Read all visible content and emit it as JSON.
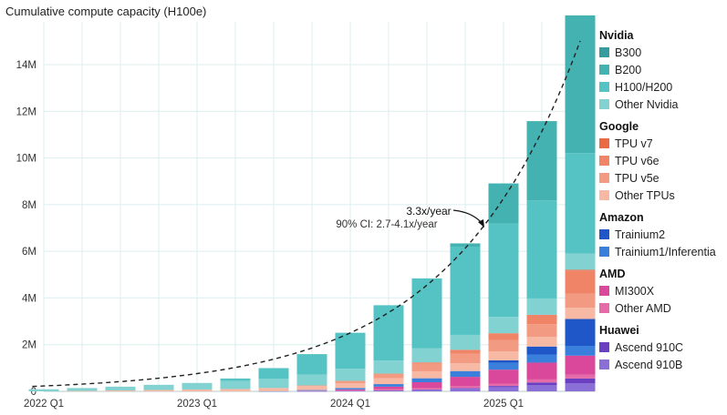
{
  "chart_data": {
    "type": "bar",
    "stacked": true,
    "title": "Cumulative compute capacity (H100e)",
    "xlabel": "",
    "ylabel": "",
    "ylim": [
      0,
      15600000
    ],
    "yticks": [
      0,
      2000000,
      4000000,
      6000000,
      8000000,
      10000000,
      12000000,
      14000000
    ],
    "ytick_labels": [
      "0",
      "2M",
      "4M",
      "6M",
      "8M",
      "10M",
      "12M",
      "14M"
    ],
    "categories": [
      "2022 Q1",
      "2022 Q2",
      "2022 Q3",
      "2022 Q4",
      "2023 Q1",
      "2023 Q2",
      "2023 Q3",
      "2023 Q4",
      "2024 Q1",
      "2024 Q2",
      "2024 Q3",
      "2024 Q4",
      "2025 Q1",
      "2025 Q2",
      "2025 Q3"
    ],
    "xtick_labels": [
      {
        "category": "2022 Q1",
        "label": "2022 Q1"
      },
      {
        "category": "2023 Q1",
        "label": "2023 Q1"
      },
      {
        "category": "2024 Q1",
        "label": "2024 Q1"
      },
      {
        "category": "2025 Q1",
        "label": "2025 Q1"
      }
    ],
    "groups": [
      {
        "name": "Nvidia",
        "keys": [
          "b300",
          "b200",
          "h100",
          "other_nvidia"
        ]
      },
      {
        "name": "Google",
        "keys": [
          "tpu_v7",
          "tpu_v6e",
          "tpu_v5e",
          "other_tpus"
        ]
      },
      {
        "name": "Amazon",
        "keys": [
          "trainium2",
          "trainium1"
        ]
      },
      {
        "name": "AMD",
        "keys": [
          "mi300x",
          "other_amd"
        ]
      },
      {
        "name": "Huawei",
        "keys": [
          "ascend_910c",
          "ascend_910b"
        ]
      }
    ],
    "series": [
      {
        "key": "ascend_910b",
        "name": "Ascend 910B",
        "color": "#8a6fd6",
        "values": [
          0,
          0,
          0,
          0,
          0,
          0,
          0,
          5000,
          20000,
          40000,
          80000,
          120000,
          180000,
          260000,
          350000
        ]
      },
      {
        "key": "ascend_910c",
        "name": "Ascend 910C",
        "color": "#6a3fc2",
        "values": [
          0,
          0,
          0,
          0,
          0,
          0,
          0,
          0,
          0,
          0,
          0,
          20000,
          50000,
          120000,
          200000
        ]
      },
      {
        "key": "other_amd",
        "name": "Other AMD",
        "color": "#e46aa8",
        "values": [
          0,
          0,
          0,
          0,
          0,
          0,
          0,
          20000,
          30000,
          50000,
          60000,
          80000,
          100000,
          130000,
          160000
        ]
      },
      {
        "key": "mi300x",
        "name": "MI300X",
        "color": "#d9489a",
        "values": [
          0,
          0,
          0,
          0,
          0,
          0,
          0,
          0,
          30000,
          110000,
          250000,
          400000,
          600000,
          720000,
          820000
        ]
      },
      {
        "key": "trainium1",
        "name": "Trainium1/Inferentia",
        "color": "#3a7fdc",
        "values": [
          0,
          0,
          0,
          0,
          0,
          0,
          5000,
          30000,
          60000,
          110000,
          170000,
          250000,
          300000,
          350000,
          420000
        ]
      },
      {
        "key": "trainium2",
        "name": "Trainium2",
        "color": "#1f57c9",
        "values": [
          0,
          0,
          0,
          0,
          0,
          0,
          0,
          0,
          0,
          0,
          0,
          0,
          100000,
          340000,
          1150000
        ]
      },
      {
        "key": "other_tpus",
        "name": "Other TPUs",
        "color": "#f7b8a4",
        "values": [
          0,
          20000,
          40000,
          60000,
          80000,
          100000,
          140000,
          180000,
          210000,
          250000,
          300000,
          330000,
          380000,
          420000,
          480000
        ]
      },
      {
        "key": "tpu_v5e",
        "name": "TPU v5e",
        "color": "#f29a82",
        "values": [
          0,
          0,
          0,
          0,
          0,
          0,
          0,
          20000,
          100000,
          200000,
          320000,
          420000,
          480000,
          540000,
          600000
        ]
      },
      {
        "key": "tpu_v6e",
        "name": "TPU v6e",
        "color": "#ef8466",
        "values": [
          0,
          0,
          0,
          0,
          0,
          0,
          0,
          0,
          0,
          0,
          60000,
          160000,
          300000,
          400000,
          1000000
        ]
      },
      {
        "key": "tpu_v7",
        "name": "TPU v7",
        "color": "#ea6a43",
        "values": [
          0,
          0,
          0,
          0,
          0,
          0,
          0,
          0,
          0,
          0,
          0,
          0,
          0,
          0,
          30000
        ]
      },
      {
        "key": "other_nvidia",
        "name": "Other Nvidia",
        "color": "#83d2d2",
        "values": [
          90000,
          120000,
          160000,
          220000,
          280000,
          350000,
          400000,
          460000,
          520000,
          560000,
          600000,
          640000,
          700000,
          700000,
          700000
        ]
      },
      {
        "key": "h100",
        "name": "H100/H200",
        "color": "#55c3c3",
        "values": [
          0,
          0,
          0,
          0,
          0,
          100000,
          450000,
          880000,
          1540000,
          2370000,
          3000000,
          3780000,
          4000000,
          4200000,
          4300000
        ]
      },
      {
        "key": "b200",
        "name": "B200",
        "color": "#45b2b2",
        "values": [
          0,
          0,
          0,
          0,
          0,
          0,
          0,
          0,
          0,
          0,
          0,
          140000,
          1720000,
          3400000,
          5900000
        ]
      },
      {
        "key": "b300",
        "name": "B300",
        "color": "#369b9c",
        "values": [
          0,
          0,
          0,
          0,
          0,
          0,
          0,
          0,
          0,
          0,
          0,
          0,
          0,
          0,
          0
        ]
      }
    ],
    "legend_order": [
      {
        "group": "Nvidia",
        "items": [
          {
            "name": "B300",
            "color": "#369b9c"
          },
          {
            "name": "B200",
            "color": "#45b2b2"
          },
          {
            "name": "H100/H200",
            "color": "#55c3c3"
          },
          {
            "name": "Other Nvidia",
            "color": "#83d2d2"
          }
        ]
      },
      {
        "group": "Google",
        "items": [
          {
            "name": "TPU v7",
            "color": "#ea6a43"
          },
          {
            "name": "TPU v6e",
            "color": "#ef8466"
          },
          {
            "name": "TPU v5e",
            "color": "#f29a82"
          },
          {
            "name": "Other TPUs",
            "color": "#f7b8a4"
          }
        ]
      },
      {
        "group": "Amazon",
        "items": [
          {
            "name": "Trainium2",
            "color": "#1f57c9"
          },
          {
            "name": "Trainium1/Inferentia",
            "color": "#3a7fdc"
          }
        ]
      },
      {
        "group": "AMD",
        "items": [
          {
            "name": "MI300X",
            "color": "#d9489a"
          },
          {
            "name": "Other AMD",
            "color": "#e46aa8"
          }
        ]
      },
      {
        "group": "Huawei",
        "items": [
          {
            "name": "Ascend 910C",
            "color": "#6a3fc2"
          },
          {
            "name": "Ascend 910B",
            "color": "#8a6fd6"
          }
        ]
      }
    ],
    "trendline": {
      "label": "3.3x/year",
      "ci_label": "90% CI: 2.7-4.1x/year",
      "growth_per_year": 3.3,
      "start_category": "2022 Q1",
      "start_value": 230000,
      "style": "dashed"
    },
    "grid": true,
    "legend_position": "right"
  }
}
